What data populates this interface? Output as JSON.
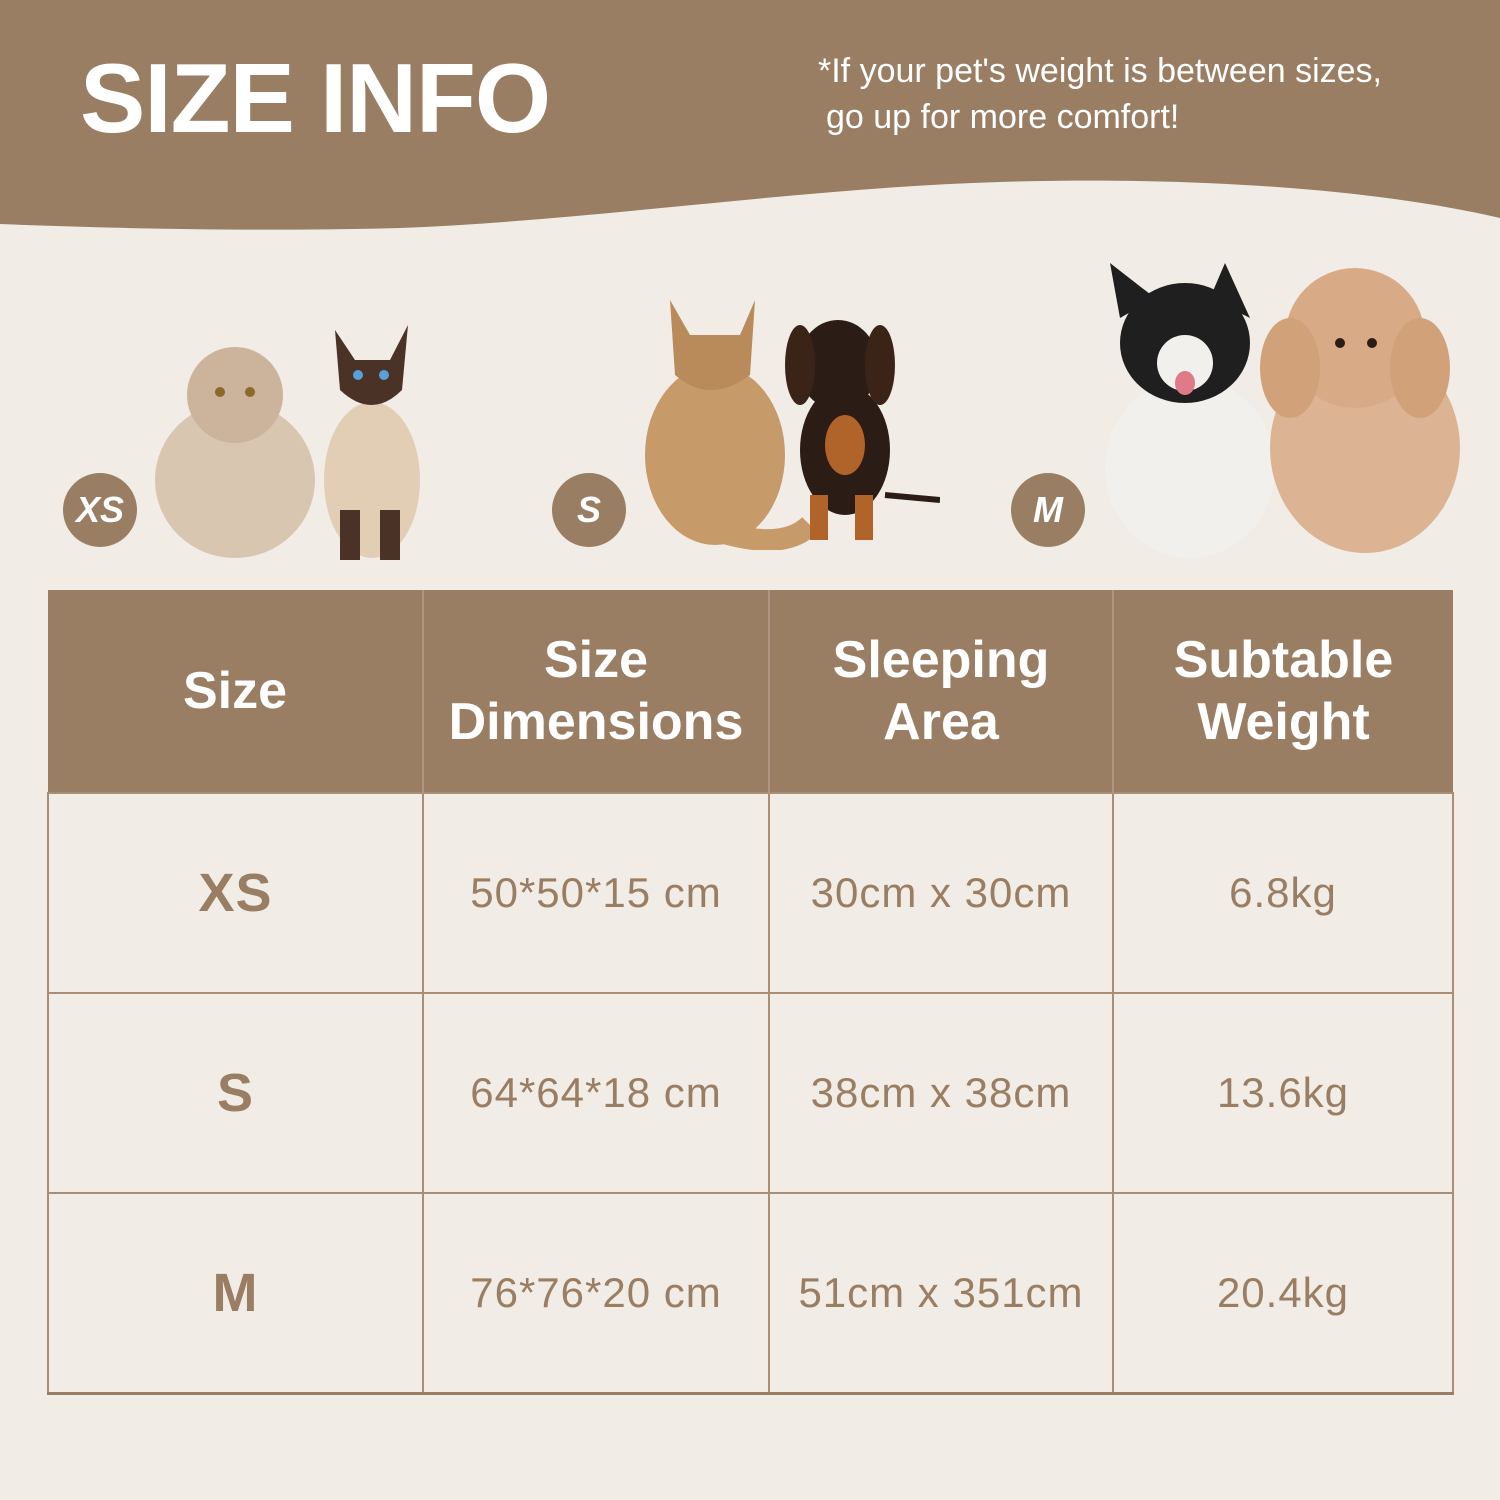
{
  "header": {
    "title": "SIZE INFO",
    "note_line1": "*If your pet's weight is between sizes,",
    "note_line2": "go up for more comfort!"
  },
  "badges": [
    "XS",
    "S",
    "M"
  ],
  "pet_images": [
    {
      "size": "XS",
      "pets": [
        "persian-cat",
        "siamese-cat"
      ]
    },
    {
      "size": "S",
      "pets": [
        "maine-coon-cat",
        "dachshund-dog"
      ]
    },
    {
      "size": "M",
      "pets": [
        "french-bulldog",
        "poodle-dog"
      ]
    }
  ],
  "table": {
    "headers": [
      [
        "Size"
      ],
      [
        "Size",
        "Dimensions"
      ],
      [
        "Sleeping",
        "Area"
      ],
      [
        "Subtable",
        "Weight"
      ]
    ],
    "rows": [
      [
        "XS",
        "50*50*15 cm",
        "30cm x 30cm",
        "6.8kg"
      ],
      [
        "S",
        "64*64*18 cm",
        "38cm x 38cm",
        "13.6kg"
      ],
      [
        "M",
        "76*76*20 cm",
        "51cm x 351cm",
        "20.4kg"
      ]
    ]
  },
  "colors": {
    "brand_brown": "#9a7e64",
    "background": "#f1ece6",
    "text_light": "#ffffff"
  }
}
